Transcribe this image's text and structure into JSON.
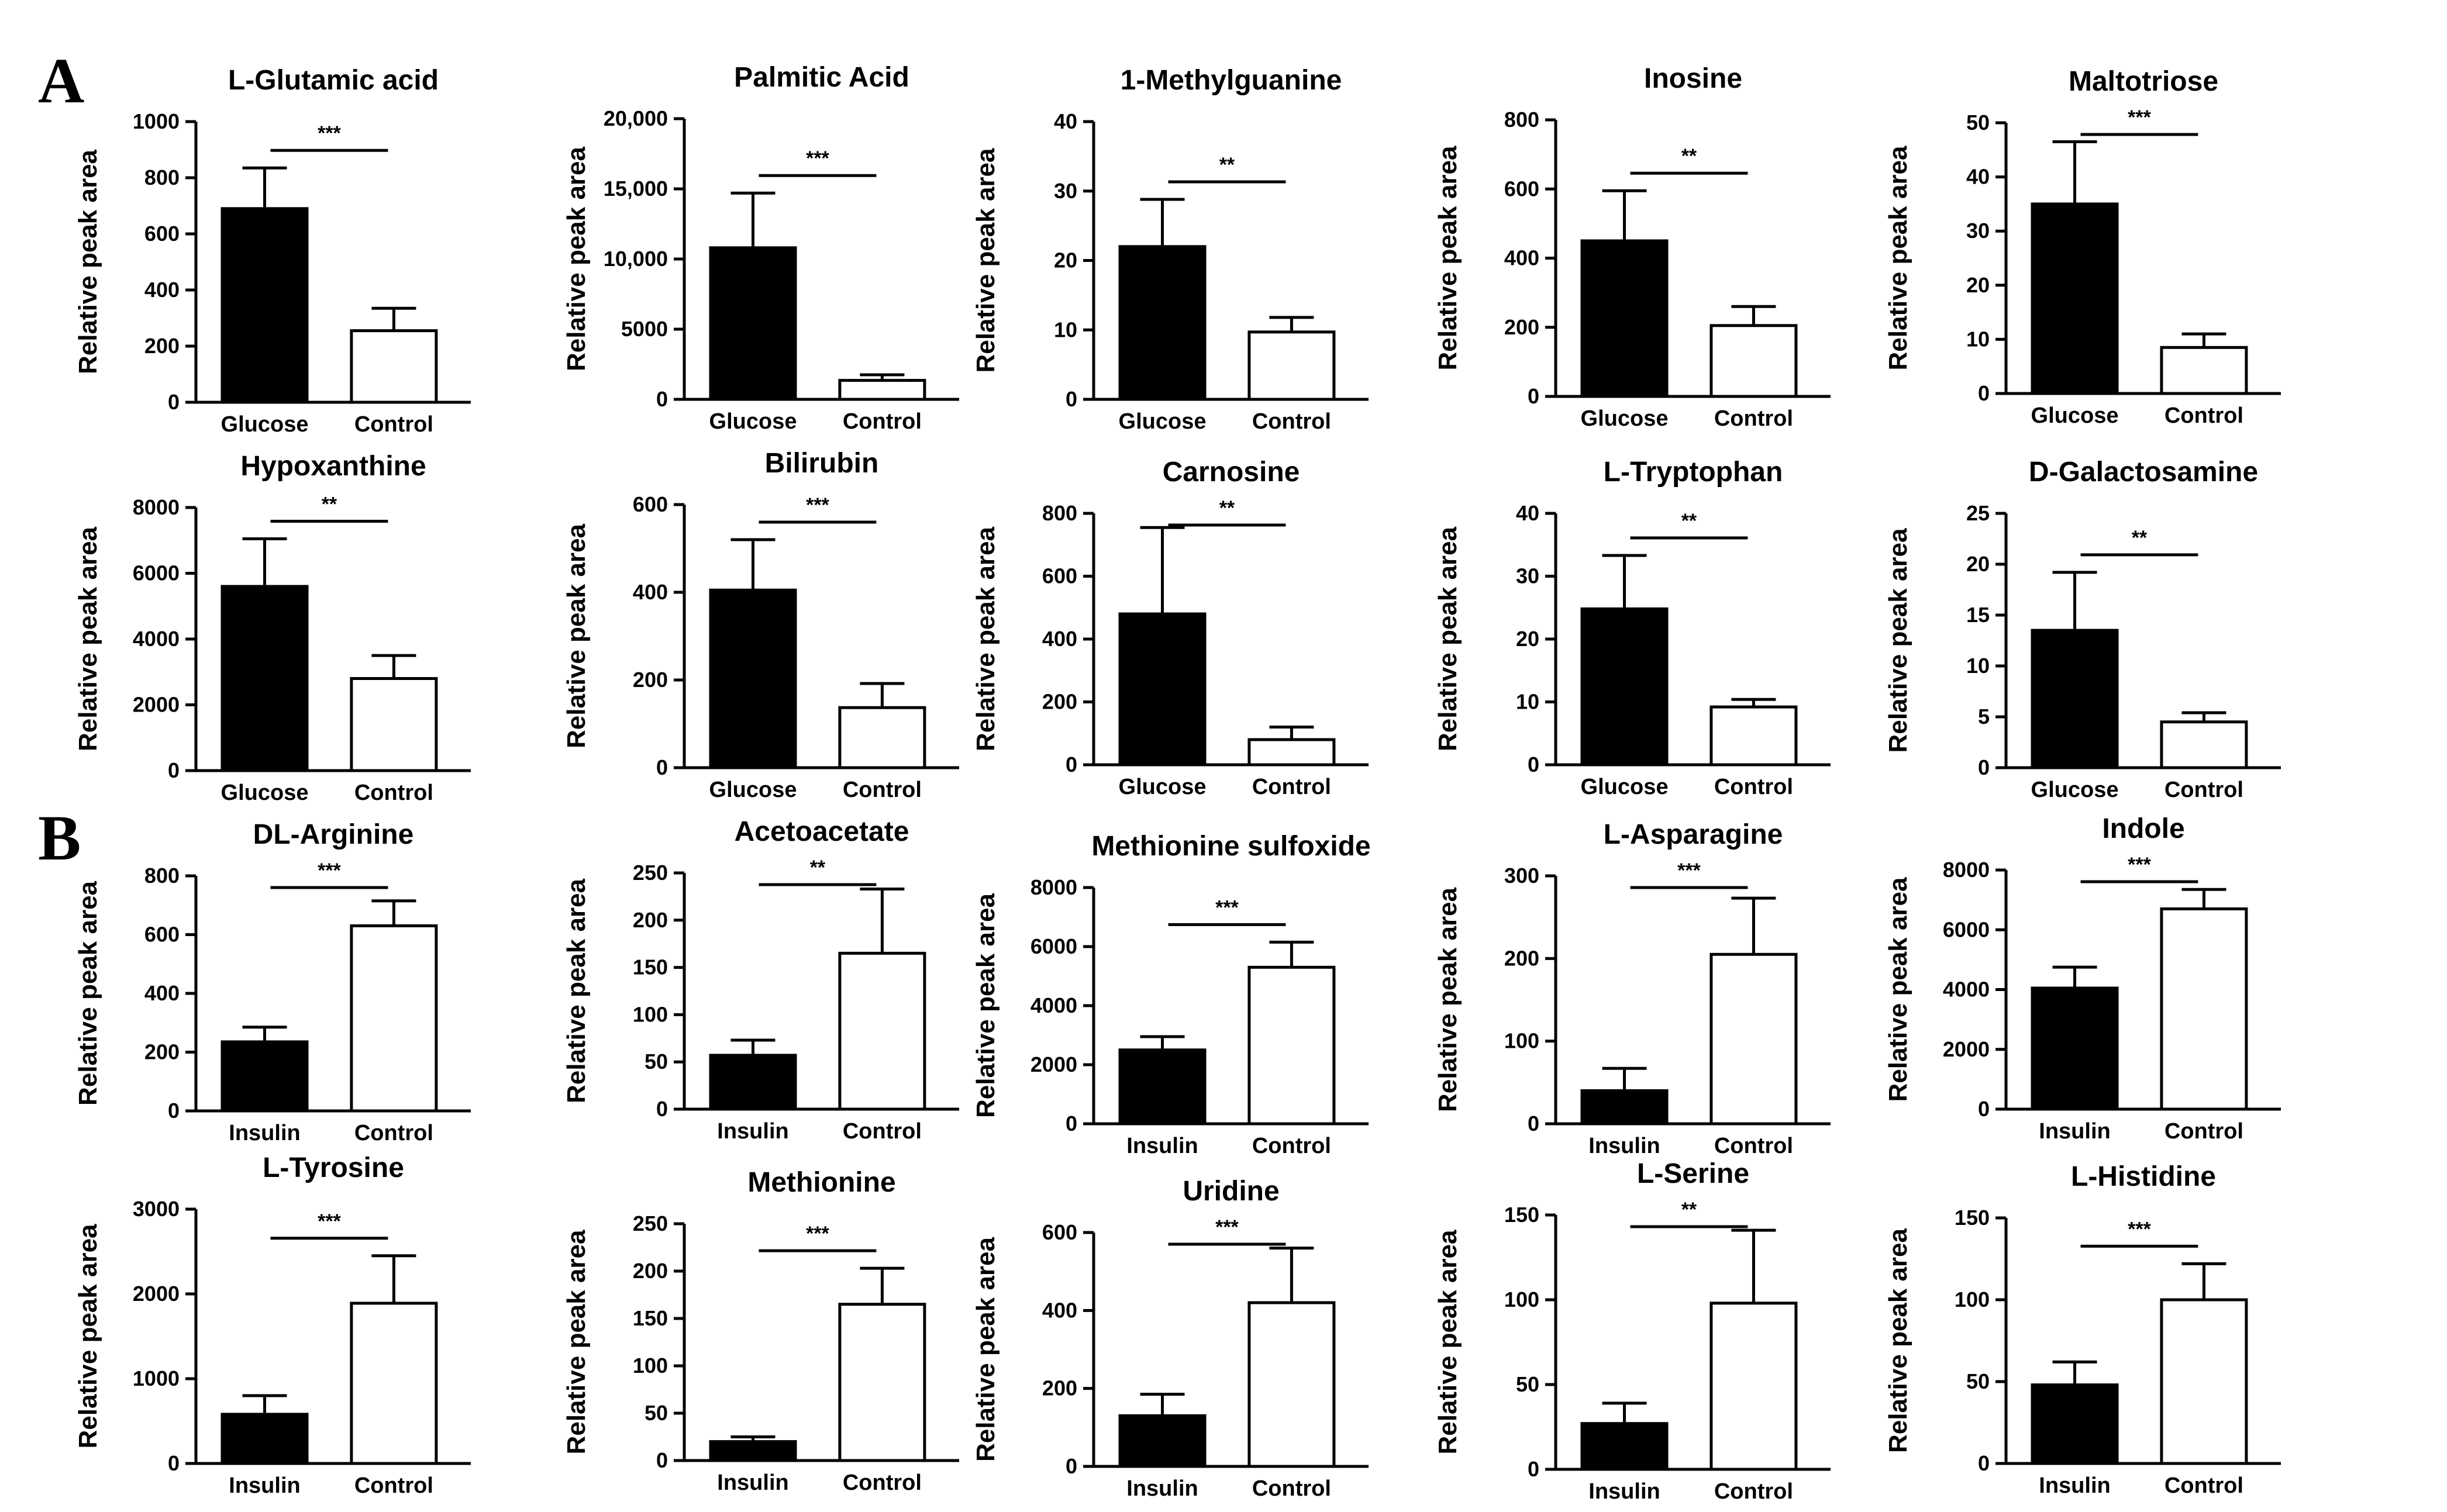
{
  "panels": [
    {
      "label": "A"
    },
    {
      "label": "B"
    }
  ],
  "chart_data": [
    {
      "type": "bar",
      "title": "L-Glutamic acid",
      "ylabel": "Relative peak area",
      "categories": [
        "Glucose",
        "Control"
      ],
      "values": [
        690,
        255
      ],
      "errors": [
        145,
        80
      ],
      "ylim": [
        0,
        1000
      ],
      "yticks": [
        0,
        200,
        400,
        600,
        800,
        1000
      ],
      "tick_labels": [
        "0",
        "200",
        "400",
        "600",
        "800",
        "1000"
      ],
      "significance": "***"
    },
    {
      "type": "bar",
      "title": "Palmitic Acid",
      "ylabel": "Relative peak area",
      "categories": [
        "Glucose",
        "Control"
      ],
      "values": [
        10800,
        1350
      ],
      "errors": [
        3900,
        400
      ],
      "ylim": [
        0,
        20000
      ],
      "yticks": [
        0,
        5000,
        10000,
        15000,
        20000
      ],
      "tick_labels": [
        "0",
        "5000",
        "10,000",
        "15,000",
        "20,000"
      ],
      "significance": "***"
    },
    {
      "type": "bar",
      "title": "1-Methylguanine",
      "ylabel": "Relative peak area",
      "categories": [
        "Glucose",
        "Control"
      ],
      "values": [
        22,
        9.7
      ],
      "errors": [
        6.8,
        2.1
      ],
      "ylim": [
        0,
        40
      ],
      "yticks": [
        0,
        10,
        20,
        30,
        40
      ],
      "tick_labels": [
        "0",
        "10",
        "20",
        "30",
        "40"
      ],
      "significance": "**"
    },
    {
      "type": "bar",
      "title": "Inosine",
      "ylabel": "Relative peak area",
      "categories": [
        "Glucose",
        "Control"
      ],
      "values": [
        450,
        205
      ],
      "errors": [
        145,
        55
      ],
      "ylim": [
        0,
        800
      ],
      "yticks": [
        0,
        200,
        400,
        600,
        800
      ],
      "tick_labels": [
        "0",
        "200",
        "400",
        "600",
        "800"
      ],
      "significance": "**"
    },
    {
      "type": "bar",
      "title": "Maltotriose",
      "ylabel": "Relative peak area",
      "categories": [
        "Glucose",
        "Control"
      ],
      "values": [
        35,
        8.5
      ],
      "errors": [
        11.5,
        2.5
      ],
      "ylim": [
        0,
        50
      ],
      "yticks": [
        0,
        10,
        20,
        30,
        40,
        50
      ],
      "tick_labels": [
        "0",
        "10",
        "20",
        "30",
        "40",
        "50"
      ],
      "significance": "***"
    },
    {
      "type": "bar",
      "title": "Hypoxanthine",
      "ylabel": "Relative peak area",
      "categories": [
        "Glucose",
        "Control"
      ],
      "values": [
        5600,
        2800
      ],
      "errors": [
        1450,
        700
      ],
      "ylim": [
        0,
        8000
      ],
      "yticks": [
        0,
        2000,
        4000,
        6000,
        8000
      ],
      "tick_labels": [
        "0",
        "2000",
        "4000",
        "6000",
        "8000"
      ],
      "significance": "**"
    },
    {
      "type": "bar",
      "title": "Bilirubin",
      "ylabel": "Relative peak area",
      "categories": [
        "Glucose",
        "Control"
      ],
      "values": [
        405,
        137
      ],
      "errors": [
        115,
        55
      ],
      "ylim": [
        0,
        600
      ],
      "yticks": [
        0,
        200,
        400,
        600
      ],
      "tick_labels": [
        "0",
        "200",
        "400",
        "600"
      ],
      "significance": "***"
    },
    {
      "type": "bar",
      "title": "Carnosine",
      "ylabel": "Relative peak area",
      "categories": [
        "Glucose",
        "Control"
      ],
      "values": [
        480,
        80
      ],
      "errors": [
        275,
        40
      ],
      "ylim": [
        0,
        800
      ],
      "yticks": [
        0,
        200,
        400,
        600,
        800
      ],
      "tick_labels": [
        "0",
        "200",
        "400",
        "600",
        "800"
      ],
      "significance": "**"
    },
    {
      "type": "bar",
      "title": "L-Tryptophan",
      "ylabel": "Relative peak area",
      "categories": [
        "Glucose",
        "Control"
      ],
      "values": [
        24.8,
        9.2
      ],
      "errors": [
        8.5,
        1.2
      ],
      "ylim": [
        0,
        40
      ],
      "yticks": [
        0,
        10,
        20,
        30,
        40
      ],
      "tick_labels": [
        "0",
        "10",
        "20",
        "30",
        "40"
      ],
      "significance": "**"
    },
    {
      "type": "bar",
      "title": "D-Galactosamine",
      "ylabel": "Relative peak area",
      "categories": [
        "Glucose",
        "Control"
      ],
      "values": [
        13.5,
        4.5
      ],
      "errors": [
        5.7,
        0.9
      ],
      "ylim": [
        0,
        25
      ],
      "yticks": [
        0,
        5,
        10,
        15,
        20,
        25
      ],
      "tick_labels": [
        "0",
        "5",
        "10",
        "15",
        "20",
        "25"
      ],
      "significance": "**"
    },
    {
      "type": "bar",
      "title": "DL-Arginine",
      "ylabel": "Relative peak area",
      "categories": [
        "Insulin",
        "Control"
      ],
      "values": [
        235,
        630
      ],
      "errors": [
        50,
        85
      ],
      "ylim": [
        0,
        800
      ],
      "yticks": [
        0,
        200,
        400,
        600,
        800
      ],
      "tick_labels": [
        "0",
        "200",
        "400",
        "600",
        "800"
      ],
      "significance": "***"
    },
    {
      "type": "bar",
      "title": "Acetoacetate",
      "ylabel": "Relative peak area",
      "categories": [
        "Insulin",
        "Control"
      ],
      "values": [
        57,
        165
      ],
      "errors": [
        16,
        68
      ],
      "ylim": [
        0,
        250
      ],
      "yticks": [
        0,
        50,
        100,
        150,
        200,
        250
      ],
      "tick_labels": [
        "0",
        "50",
        "100",
        "150",
        "200",
        "250"
      ],
      "significance": "**"
    },
    {
      "type": "bar",
      "title": "Methionine sulfoxide",
      "ylabel": "Relative peak area",
      "categories": [
        "Insulin",
        "Control"
      ],
      "values": [
        2500,
        5300
      ],
      "errors": [
        450,
        850
      ],
      "ylim": [
        0,
        8000
      ],
      "yticks": [
        0,
        2000,
        4000,
        6000,
        8000
      ],
      "tick_labels": [
        "0",
        "2000",
        "4000",
        "6000",
        "8000"
      ],
      "significance": "***"
    },
    {
      "type": "bar",
      "title": "L-Asparagine",
      "ylabel": "Relative peak area",
      "categories": [
        "Insulin",
        "Control"
      ],
      "values": [
        40,
        205
      ],
      "errors": [
        27,
        68
      ],
      "ylim": [
        0,
        300
      ],
      "yticks": [
        0,
        100,
        200,
        300
      ],
      "tick_labels": [
        "0",
        "100",
        "200",
        "300"
      ],
      "significance": "***"
    },
    {
      "type": "bar",
      "title": "Indole",
      "ylabel": "Relative peak area",
      "categories": [
        "Insulin",
        "Control"
      ],
      "values": [
        4050,
        6700
      ],
      "errors": [
        700,
        650
      ],
      "ylim": [
        0,
        8000
      ],
      "yticks": [
        0,
        2000,
        4000,
        6000,
        8000
      ],
      "tick_labels": [
        "0",
        "2000",
        "4000",
        "6000",
        "8000"
      ],
      "significance": "***"
    },
    {
      "type": "bar",
      "title": "L-Tyrosine",
      "ylabel": "Relative peak area",
      "categories": [
        "Insulin",
        "Control"
      ],
      "values": [
        580,
        1890
      ],
      "errors": [
        220,
        560
      ],
      "ylim": [
        0,
        3000
      ],
      "yticks": [
        0,
        1000,
        2000,
        3000
      ],
      "tick_labels": [
        "0",
        "1000",
        "2000",
        "3000"
      ],
      "significance": "***"
    },
    {
      "type": "bar",
      "title": "Methionine",
      "ylabel": "Relative peak area",
      "categories": [
        "Insulin",
        "Control"
      ],
      "values": [
        20,
        165
      ],
      "errors": [
        5,
        38
      ],
      "ylim": [
        0,
        250
      ],
      "yticks": [
        0,
        50,
        100,
        150,
        200,
        250
      ],
      "tick_labels": [
        "0",
        "50",
        "100",
        "150",
        "200",
        "250"
      ],
      "significance": "***"
    },
    {
      "type": "bar",
      "title": "Uridine",
      "ylabel": "Relative peak area",
      "categories": [
        "Insulin",
        "Control"
      ],
      "values": [
        130,
        420
      ],
      "errors": [
        55,
        140
      ],
      "ylim": [
        0,
        600
      ],
      "yticks": [
        0,
        200,
        400,
        600
      ],
      "tick_labels": [
        "0",
        "200",
        "400",
        "600"
      ],
      "significance": "***"
    },
    {
      "type": "bar",
      "title": "L-Serine",
      "ylabel": "Relative peak area",
      "categories": [
        "Insulin",
        "Control"
      ],
      "values": [
        27,
        98
      ],
      "errors": [
        12,
        43
      ],
      "ylim": [
        0,
        150
      ],
      "yticks": [
        0,
        50,
        100,
        150
      ],
      "tick_labels": [
        "0",
        "50",
        "100",
        "150"
      ],
      "significance": "**"
    },
    {
      "type": "bar",
      "title": "L-Histidine",
      "ylabel": "Relative peak area",
      "categories": [
        "Insulin",
        "Control"
      ],
      "values": [
        48,
        100
      ],
      "errors": [
        14,
        22
      ],
      "ylim": [
        0,
        150
      ],
      "yticks": [
        0,
        50,
        100,
        150
      ],
      "tick_labels": [
        "0",
        "50",
        "100",
        "150"
      ],
      "significance": "***"
    }
  ]
}
